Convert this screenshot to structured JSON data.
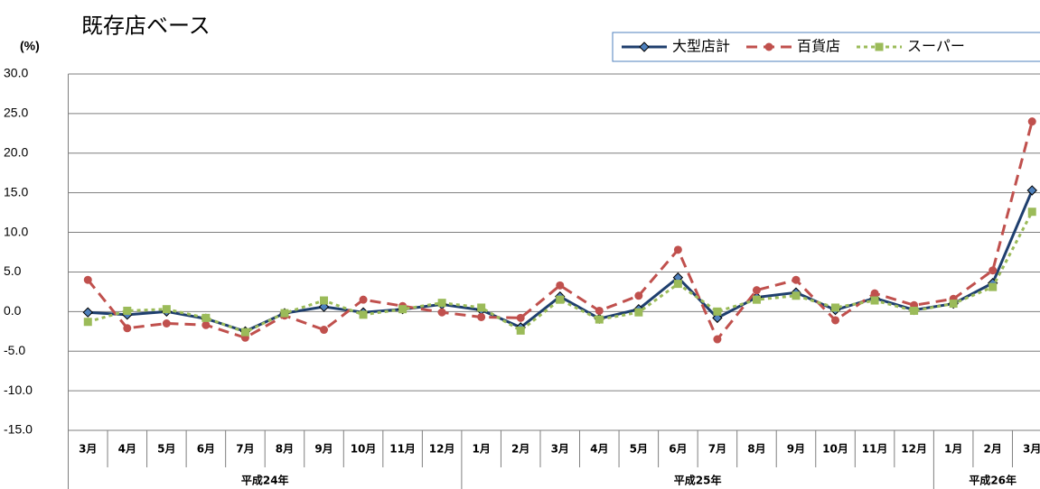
{
  "chart_data": {
    "type": "line",
    "title": "既存店ベース",
    "y_label": "(%)",
    "categories": [
      "3月",
      "4月",
      "5月",
      "6月",
      "7月",
      "8月",
      "9月",
      "10月",
      "11月",
      "12月",
      "1月",
      "2月",
      "3月",
      "4月",
      "5月",
      "6月",
      "7月",
      "8月",
      "9月",
      "10月",
      "11月",
      "12月",
      "1月",
      "2月",
      "3月"
    ],
    "years": [
      "平成24年",
      "平成24年",
      "平成24年",
      "平成24年",
      "平成24年",
      "平成24年",
      "平成24年",
      "平成24年",
      "平成24年",
      "平成24年",
      "平成25年",
      "平成25年",
      "平成25年",
      "平成25年",
      "平成25年",
      "平成25年",
      "平成25年",
      "平成25年",
      "平成25年",
      "平成25年",
      "平成25年",
      "平成25年",
      "平成26年",
      "平成26年",
      "平成26年"
    ],
    "series": [
      {
        "name": "大型店計",
        "color": "#1f3f6e",
        "marker": "diamond",
        "dash": "solid",
        "values": [
          -0.1,
          -0.4,
          0.0,
          -0.9,
          -2.5,
          -0.2,
          0.6,
          -0.1,
          0.3,
          0.9,
          0.2,
          -2.0,
          1.9,
          -0.9,
          0.3,
          4.3,
          -0.8,
          1.8,
          2.4,
          0.2,
          1.7,
          0.2,
          1.0,
          3.6,
          15.3
        ]
      },
      {
        "name": "百貨店",
        "color": "#c0504d",
        "marker": "circle",
        "dash": "dashed",
        "values": [
          4.0,
          -2.1,
          -1.5,
          -1.7,
          -3.3,
          -0.5,
          -2.3,
          1.5,
          0.7,
          -0.1,
          -0.7,
          -0.8,
          3.3,
          0.1,
          2.0,
          7.8,
          -3.5,
          2.7,
          4.0,
          -1.1,
          2.3,
          0.8,
          1.6,
          5.2,
          24.0
        ]
      },
      {
        "name": "スーパー",
        "color": "#9bbb59",
        "marker": "square",
        "dash": "dotted",
        "values": [
          -1.3,
          0.1,
          0.3,
          -0.8,
          -2.6,
          -0.2,
          1.4,
          -0.4,
          0.3,
          1.1,
          0.5,
          -2.4,
          1.5,
          -1.0,
          -0.1,
          3.5,
          0.0,
          1.5,
          2.0,
          0.5,
          1.4,
          0.1,
          1.0,
          3.1,
          12.6
        ]
      }
    ],
    "ylim": [
      -15,
      30
    ],
    "yticks": [
      {
        "value": -15,
        "label": "-15.0"
      },
      {
        "value": -10,
        "label": "-10.0"
      },
      {
        "value": -5,
        "label": "-5.0"
      },
      {
        "value": 0,
        "label": "0.0"
      },
      {
        "value": 5,
        "label": "5.0"
      },
      {
        "value": 10,
        "label": "10.0"
      },
      {
        "value": 15,
        "label": "15.0"
      },
      {
        "value": 20,
        "label": "20.0"
      },
      {
        "value": 25,
        "label": "25.0"
      },
      {
        "value": 30,
        "label": "30.0"
      }
    ],
    "grid": true,
    "legend": "top-right"
  }
}
